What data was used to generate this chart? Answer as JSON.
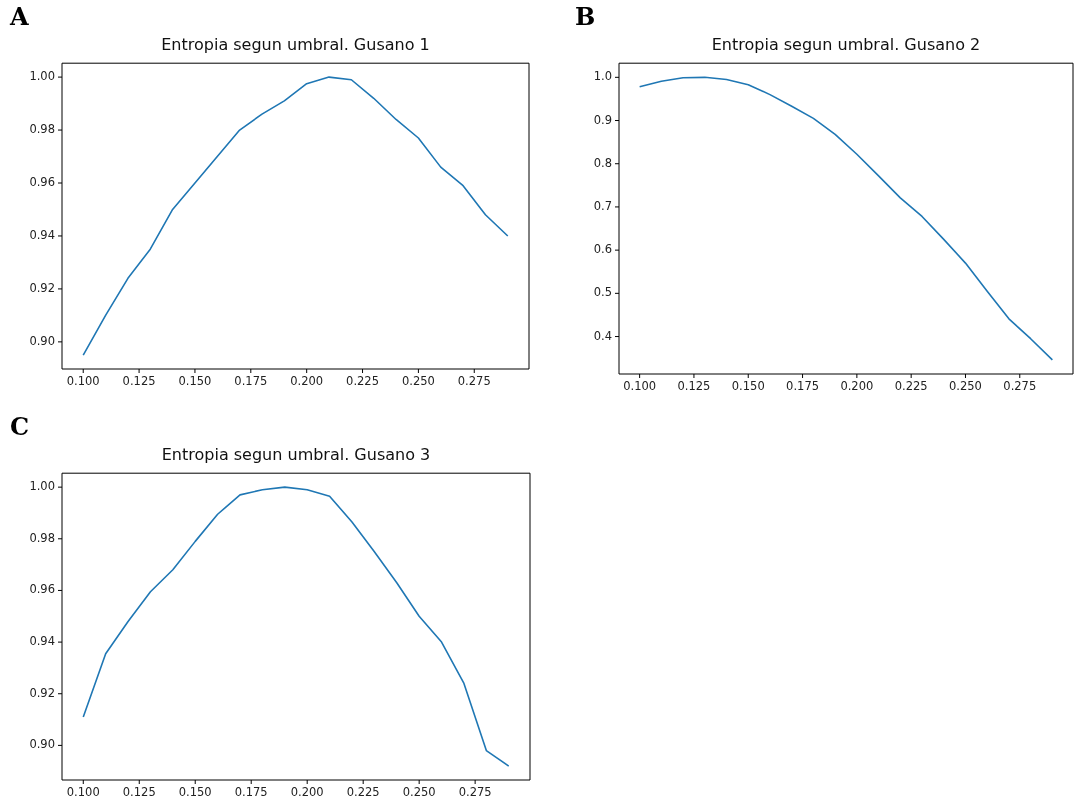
{
  "chart_data": [
    {
      "type": "line",
      "title": "Entropia segun umbral. Gusano 1",
      "annotations": [
        "A"
      ],
      "grid": false,
      "marker": "none",
      "x": [
        0.1,
        0.11,
        0.12,
        0.13,
        0.14,
        0.15,
        0.16,
        0.17,
        0.18,
        0.19,
        0.2,
        0.21,
        0.22,
        0.23,
        0.24,
        0.25,
        0.26,
        0.27,
        0.28,
        0.29
      ],
      "series": [
        {
          "color": "#1f77b4",
          "values": [
            0.895,
            0.91,
            0.924,
            0.935,
            0.95,
            0.96,
            0.97,
            0.98,
            0.986,
            0.991,
            0.9975,
            1.0,
            0.999,
            0.992,
            0.984,
            0.977,
            0.966,
            0.959,
            0.948,
            0.94
          ]
        }
      ],
      "xlim": [
        0.0905,
        0.2995
      ],
      "ylim": [
        0.88975,
        1.00525
      ],
      "xticks": [
        {
          "value": 0.1,
          "label": "0.100"
        },
        {
          "value": 0.125,
          "label": "0.125"
        },
        {
          "value": 0.15,
          "label": "0.150"
        },
        {
          "value": 0.175,
          "label": "0.175"
        },
        {
          "value": 0.2,
          "label": "0.200"
        },
        {
          "value": 0.225,
          "label": "0.225"
        },
        {
          "value": 0.25,
          "label": "0.250"
        },
        {
          "value": 0.275,
          "label": "0.275"
        }
      ],
      "yticks": [
        {
          "value": 0.9,
          "label": "0.90"
        },
        {
          "value": 0.92,
          "label": "0.92"
        },
        {
          "value": 0.94,
          "label": "0.94"
        },
        {
          "value": 0.96,
          "label": "0.96"
        },
        {
          "value": 0.98,
          "label": "0.98"
        },
        {
          "value": 1.0,
          "label": "1.00"
        }
      ]
    },
    {
      "type": "line",
      "title": "Entropia segun umbral. Gusano 2",
      "annotations": [
        "B"
      ],
      "grid": false,
      "marker": "none",
      "x": [
        0.1,
        0.11,
        0.12,
        0.13,
        0.14,
        0.15,
        0.16,
        0.17,
        0.18,
        0.19,
        0.2,
        0.21,
        0.22,
        0.23,
        0.24,
        0.25,
        0.26,
        0.27,
        0.28,
        0.29
      ],
      "series": [
        {
          "color": "#1f77b4",
          "values": [
            0.978,
            0.991,
            0.999,
            1.0,
            0.995,
            0.983,
            0.96,
            0.933,
            0.905,
            0.868,
            0.822,
            0.772,
            0.721,
            0.678,
            0.625,
            0.57,
            0.505,
            0.441,
            0.395,
            0.346
          ]
        }
      ],
      "xlim": [
        0.0905,
        0.2995
      ],
      "ylim": [
        0.3133,
        1.0327
      ],
      "xticks": [
        {
          "value": 0.1,
          "label": "0.100"
        },
        {
          "value": 0.125,
          "label": "0.125"
        },
        {
          "value": 0.15,
          "label": "0.150"
        },
        {
          "value": 0.175,
          "label": "0.175"
        },
        {
          "value": 0.2,
          "label": "0.200"
        },
        {
          "value": 0.225,
          "label": "0.225"
        },
        {
          "value": 0.25,
          "label": "0.250"
        },
        {
          "value": 0.275,
          "label": "0.275"
        }
      ],
      "yticks": [
        0.4,
        0.5,
        0.6,
        0.7,
        0.8,
        0.9,
        {
          "value": 1.0,
          "label": "1.0"
        }
      ]
    },
    {
      "type": "line",
      "title": "Entropia segun umbral. Gusano 3",
      "annotations": [
        "C"
      ],
      "grid": false,
      "marker": "none",
      "x": [
        0.1,
        0.11,
        0.12,
        0.13,
        0.14,
        0.15,
        0.16,
        0.17,
        0.18,
        0.19,
        0.2,
        0.21,
        0.22,
        0.23,
        0.24,
        0.25,
        0.26,
        0.27,
        0.28,
        0.29
      ],
      "series": [
        {
          "color": "#1f77b4",
          "values": [
            0.911,
            0.9355,
            0.948,
            0.9595,
            0.968,
            0.979,
            0.9895,
            0.997,
            0.999,
            1.0,
            0.999,
            0.9965,
            0.9865,
            0.975,
            0.963,
            0.95,
            0.94,
            0.924,
            0.898,
            0.892
          ]
        }
      ],
      "xlim": [
        0.0905,
        0.2995
      ],
      "ylim": [
        0.8866,
        1.0054
      ],
      "xticks": [
        {
          "value": 0.1,
          "label": "0.100"
        },
        {
          "value": 0.125,
          "label": "0.125"
        },
        {
          "value": 0.15,
          "label": "0.150"
        },
        {
          "value": 0.175,
          "label": "0.175"
        },
        {
          "value": 0.2,
          "label": "0.200"
        },
        {
          "value": 0.225,
          "label": "0.225"
        },
        {
          "value": 0.25,
          "label": "0.250"
        },
        {
          "value": 0.275,
          "label": "0.275"
        }
      ],
      "yticks": [
        {
          "value": 0.9,
          "label": "0.90"
        },
        {
          "value": 0.92,
          "label": "0.92"
        },
        {
          "value": 0.94,
          "label": "0.94"
        },
        {
          "value": 0.96,
          "label": "0.96"
        },
        {
          "value": 0.98,
          "label": "0.98"
        },
        {
          "value": 1.0,
          "label": "1.00"
        }
      ]
    }
  ]
}
